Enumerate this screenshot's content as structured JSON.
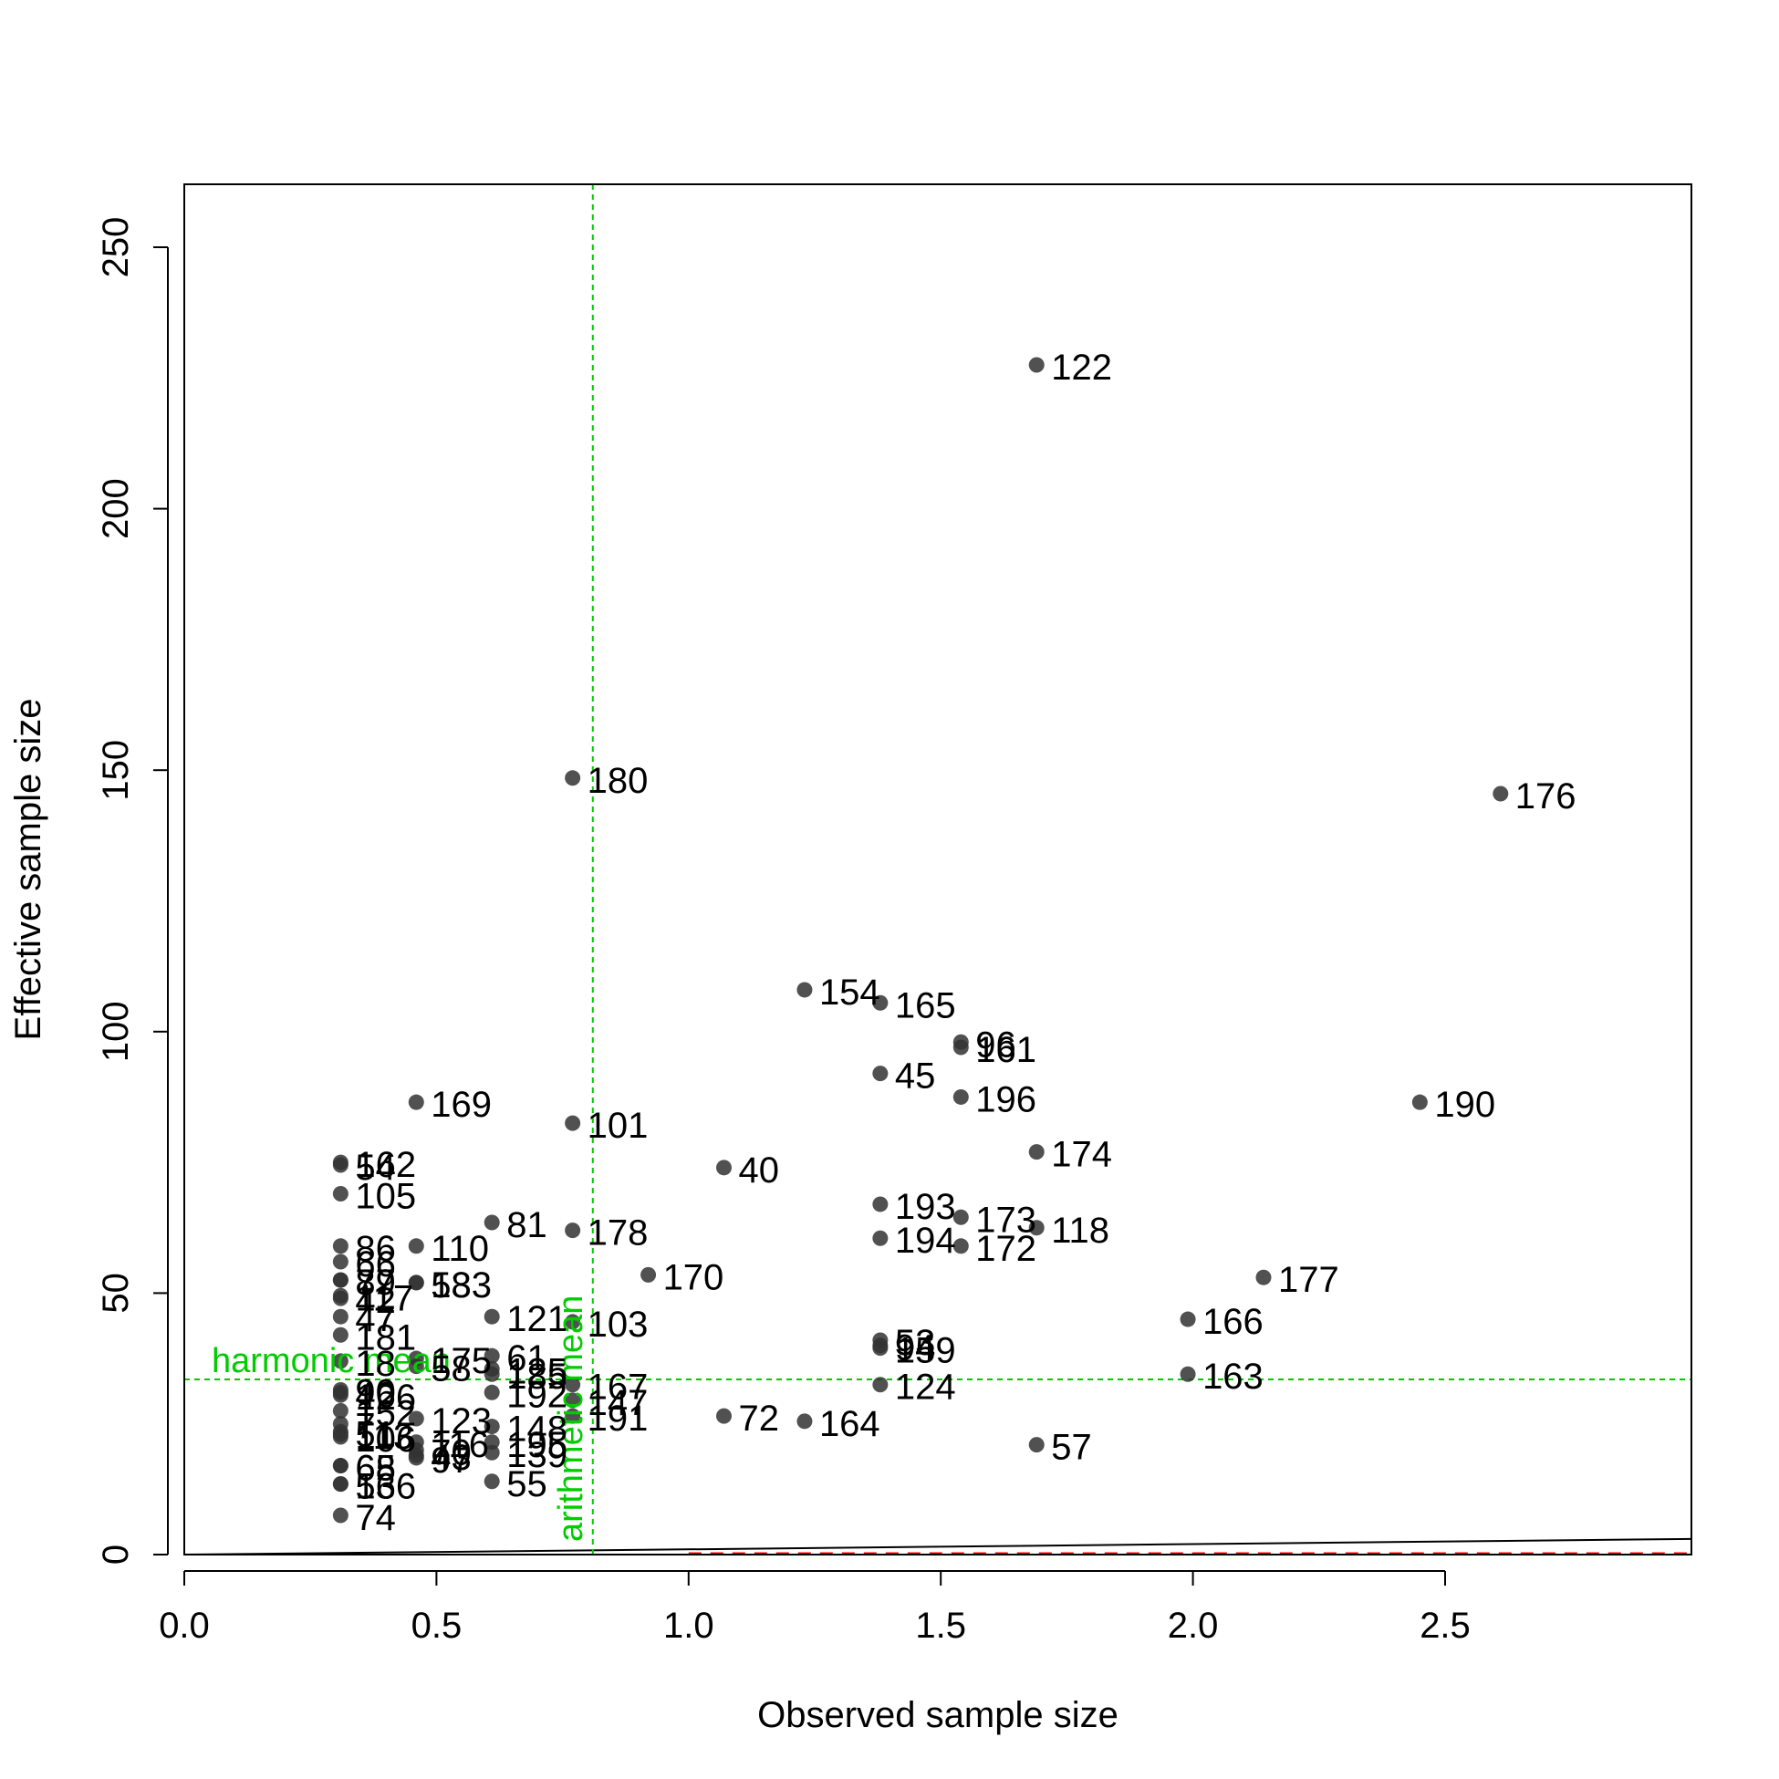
{
  "chart_data": {
    "type": "scatter",
    "xlabel": "Observed sample size",
    "ylabel": "Effective sample size",
    "xlim": [
      0,
      3
    ],
    "ylim": [
      0,
      260
    ],
    "xticks": [
      "0.0",
      "0.5",
      "1.0",
      "1.5",
      "2.0",
      "2.5"
    ],
    "yticks": [
      "0",
      "50",
      "100",
      "150",
      "200",
      "250"
    ],
    "grid": false,
    "point_color": "#333333",
    "reference_lines": {
      "color": "#00cc00",
      "harmonic_mean": {
        "label": "harmonic mean",
        "y": 33.5
      },
      "arithmetic_mean": {
        "label": "arithmetic mean",
        "x": 0.81
      }
    },
    "red_dashed_line": {
      "color": "#ff0000",
      "y": 0,
      "x_from": 1.0,
      "x_to": 3.0
    },
    "diagonal_line": {
      "color": "#000000",
      "slope": 1
    },
    "points": [
      {
        "id": "122",
        "x": 1.69,
        "y": 227.5
      },
      {
        "id": "180",
        "x": 0.77,
        "y": 148.5
      },
      {
        "id": "176",
        "x": 2.61,
        "y": 145.5
      },
      {
        "id": "154",
        "x": 1.23,
        "y": 108
      },
      {
        "id": "165",
        "x": 1.38,
        "y": 105.5
      },
      {
        "id": "96",
        "x": 1.54,
        "y": 98
      },
      {
        "id": "161",
        "x": 1.54,
        "y": 97
      },
      {
        "id": "45",
        "x": 1.38,
        "y": 92
      },
      {
        "id": "196",
        "x": 1.54,
        "y": 87.5
      },
      {
        "id": "169",
        "x": 0.46,
        "y": 86.5
      },
      {
        "id": "190",
        "x": 2.45,
        "y": 86.5
      },
      {
        "id": "101",
        "x": 0.77,
        "y": 82.5
      },
      {
        "id": "174",
        "x": 1.69,
        "y": 77
      },
      {
        "id": "162",
        "x": 0.31,
        "y": 75
      },
      {
        "id": "54",
        "x": 0.31,
        "y": 74.5
      },
      {
        "id": "40",
        "x": 1.07,
        "y": 74
      },
      {
        "id": "105",
        "x": 0.31,
        "y": 69
      },
      {
        "id": "193",
        "x": 1.38,
        "y": 67
      },
      {
        "id": "173",
        "x": 1.54,
        "y": 64.5
      },
      {
        "id": "81",
        "x": 0.61,
        "y": 63.5
      },
      {
        "id": "118",
        "x": 1.69,
        "y": 62.5
      },
      {
        "id": "178",
        "x": 0.77,
        "y": 62
      },
      {
        "id": "194",
        "x": 1.38,
        "y": 60.5
      },
      {
        "id": "86",
        "x": 0.31,
        "y": 59
      },
      {
        "id": "110",
        "x": 0.46,
        "y": 59
      },
      {
        "id": "172",
        "x": 1.54,
        "y": 59
      },
      {
        "id": "66",
        "x": 0.31,
        "y": 56
      },
      {
        "id": "170",
        "x": 0.92,
        "y": 53.5
      },
      {
        "id": "177",
        "x": 2.14,
        "y": 53
      },
      {
        "id": "79",
        "x": 0.31,
        "y": 52.5
      },
      {
        "id": "87",
        "x": 0.31,
        "y": 52.5
      },
      {
        "id": "58",
        "x": 0.46,
        "y": 52
      },
      {
        "id": "133",
        "x": 0.46,
        "y": 52
      },
      {
        "id": "117",
        "x": 0.31,
        "y": 49.5
      },
      {
        "id": "42",
        "x": 0.31,
        "y": 49
      },
      {
        "id": "47",
        "x": 0.31,
        "y": 45.5
      },
      {
        "id": "121",
        "x": 0.61,
        "y": 45.5
      },
      {
        "id": "103",
        "x": 0.77,
        "y": 44.5
      },
      {
        "id": "166",
        "x": 1.99,
        "y": 45
      },
      {
        "id": "181",
        "x": 0.31,
        "y": 42
      },
      {
        "id": "53",
        "x": 1.38,
        "y": 41
      },
      {
        "id": "94",
        "x": 1.38,
        "y": 40
      },
      {
        "id": "159",
        "x": 1.38,
        "y": 39.5
      },
      {
        "id": "61",
        "x": 0.61,
        "y": 38
      },
      {
        "id": "175",
        "x": 0.46,
        "y": 37.5
      },
      {
        "id": "18",
        "x": 0.31,
        "y": 37
      },
      {
        "id": "58",
        "x": 0.46,
        "y": 36
      },
      {
        "id": "125",
        "x": 0.61,
        "y": 35.5
      },
      {
        "id": "185",
        "x": 0.61,
        "y": 34.5
      },
      {
        "id": "163",
        "x": 1.99,
        "y": 34.5
      },
      {
        "id": "124",
        "x": 1.38,
        "y": 32.5
      },
      {
        "id": "167",
        "x": 0.77,
        "y": 32.5
      },
      {
        "id": "90",
        "x": 0.31,
        "y": 31.5
      },
      {
        "id": "46",
        "x": 0.31,
        "y": 31
      },
      {
        "id": "126",
        "x": 0.31,
        "y": 30.5
      },
      {
        "id": "192",
        "x": 0.61,
        "y": 31
      },
      {
        "id": "147",
        "x": 0.77,
        "y": 29.5
      },
      {
        "id": "152",
        "x": 0.31,
        "y": 27.5
      },
      {
        "id": "123",
        "x": 0.46,
        "y": 26
      },
      {
        "id": "72",
        "x": 1.07,
        "y": 26.5
      },
      {
        "id": "164",
        "x": 1.23,
        "y": 25.5
      },
      {
        "id": "191",
        "x": 0.77,
        "y": 26.5
      },
      {
        "id": "148",
        "x": 0.61,
        "y": 24.5
      },
      {
        "id": "7",
        "x": 0.31,
        "y": 25
      },
      {
        "id": "51",
        "x": 0.31,
        "y": 23.5
      },
      {
        "id": "113",
        "x": 0.31,
        "y": 23
      },
      {
        "id": "106",
        "x": 0.31,
        "y": 22.5
      },
      {
        "id": "195",
        "x": 0.61,
        "y": 21.5
      },
      {
        "id": "116",
        "x": 0.46,
        "y": 21.5
      },
      {
        "id": "57",
        "x": 1.69,
        "y": 21
      },
      {
        "id": "70",
        "x": 0.46,
        "y": 20
      },
      {
        "id": "139",
        "x": 0.61,
        "y": 19.5
      },
      {
        "id": "43",
        "x": 0.46,
        "y": 19
      },
      {
        "id": "97",
        "x": 0.46,
        "y": 18.5
      },
      {
        "id": "65",
        "x": 0.31,
        "y": 17
      },
      {
        "id": "68",
        "x": 0.31,
        "y": 17
      },
      {
        "id": "56",
        "x": 0.31,
        "y": 13.5
      },
      {
        "id": "136",
        "x": 0.31,
        "y": 13.5
      },
      {
        "id": "55",
        "x": 0.61,
        "y": 14
      },
      {
        "id": "74",
        "x": 0.31,
        "y": 7.5
      }
    ]
  }
}
